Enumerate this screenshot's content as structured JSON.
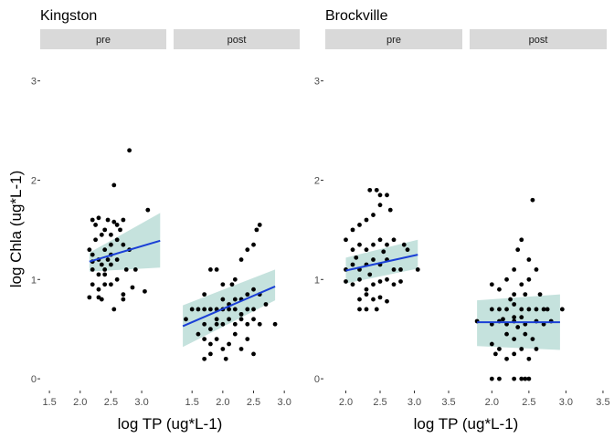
{
  "chart_data": [
    {
      "type": "scatter",
      "title": "Kingston",
      "xlabel": "log TP (ug*L-1)",
      "ylabel": "log Chla (ug*L-1)",
      "ylim": [
        -0.1,
        3.3
      ],
      "y_ticks": [
        "0",
        "1",
        "2",
        "3"
      ],
      "grid": false,
      "trend": "linear fit with confidence band",
      "facets": [
        {
          "strip": "pre",
          "xlim": [
            1.35,
            3.4
          ],
          "x_ticks": [
            "1.5",
            "2.0",
            "2.5",
            "3.0"
          ],
          "fit": {
            "x": [
              2.15,
              3.3
            ],
            "y": [
              1.18,
              1.39
            ],
            "lower": [
              1.08,
              1.12
            ],
            "upper": [
              1.27,
              1.67
            ]
          },
          "points": [
            [
              2.2,
              1.6
            ],
            [
              2.3,
              1.62
            ],
            [
              2.25,
              1.55
            ],
            [
              2.4,
              1.5
            ],
            [
              2.5,
              1.45
            ],
            [
              2.6,
              1.55
            ],
            [
              2.7,
              1.6
            ],
            [
              2.55,
              1.95
            ],
            [
              2.8,
              2.3
            ],
            [
              3.1,
              1.7
            ],
            [
              2.15,
              1.3
            ],
            [
              2.2,
              1.25
            ],
            [
              2.3,
              1.2
            ],
            [
              2.35,
              1.15
            ],
            [
              2.4,
              1.3
            ],
            [
              2.5,
              1.35
            ],
            [
              2.6,
              1.4
            ],
            [
              2.7,
              1.35
            ],
            [
              2.2,
              1.1
            ],
            [
              2.3,
              1.05
            ],
            [
              2.4,
              1.1
            ],
            [
              2.5,
              1.15
            ],
            [
              2.6,
              1.2
            ],
            [
              2.75,
              1.1
            ],
            [
              2.9,
              1.1
            ],
            [
              2.2,
              0.95
            ],
            [
              2.3,
              0.9
            ],
            [
              2.4,
              0.95
            ],
            [
              2.5,
              0.95
            ],
            [
              2.15,
              0.82
            ],
            [
              2.35,
              0.8
            ],
            [
              2.55,
              0.7
            ],
            [
              2.7,
              0.85
            ],
            [
              3.05,
              0.88
            ],
            [
              2.45,
              1.6
            ],
            [
              2.65,
              1.5
            ],
            [
              2.25,
              1.4
            ],
            [
              2.35,
              1.45
            ],
            [
              2.5,
              1.25
            ],
            [
              2.6,
              1.0
            ],
            [
              2.7,
              0.8
            ],
            [
              2.85,
              0.92
            ],
            [
              2.8,
              1.3
            ],
            [
              2.4,
              1.05
            ],
            [
              2.3,
              0.82
            ],
            [
              2.55,
              1.58
            ],
            [
              2.2,
              1.18
            ],
            [
              2.45,
              1.2
            ]
          ]
        },
        {
          "strip": "post",
          "xlim": [
            1.2,
            3.25
          ],
          "x_ticks": [
            "1.5",
            "2.0",
            "2.5",
            "3.0"
          ],
          "fit": {
            "x": [
              1.35,
              2.85
            ],
            "y": [
              0.53,
              0.93
            ],
            "lower": [
              0.32,
              0.79
            ],
            "upper": [
              0.74,
              1.1
            ]
          },
          "points": [
            [
              1.4,
              0.6
            ],
            [
              1.6,
              0.45
            ],
            [
              1.7,
              0.55
            ],
            [
              1.8,
              0.5
            ],
            [
              1.9,
              0.6
            ],
            [
              2.0,
              0.55
            ],
            [
              2.1,
              0.6
            ],
            [
              2.2,
              0.55
            ],
            [
              2.3,
              0.6
            ],
            [
              2.4,
              0.55
            ],
            [
              2.5,
              0.6
            ],
            [
              2.6,
              0.55
            ],
            [
              2.85,
              0.55
            ],
            [
              1.5,
              0.7
            ],
            [
              1.6,
              0.7
            ],
            [
              1.7,
              0.7
            ],
            [
              1.8,
              0.7
            ],
            [
              1.9,
              0.7
            ],
            [
              2.0,
              0.7
            ],
            [
              2.1,
              0.7
            ],
            [
              2.2,
              0.7
            ],
            [
              2.3,
              0.65
            ],
            [
              2.4,
              0.7
            ],
            [
              2.5,
              0.7
            ],
            [
              1.7,
              0.2
            ],
            [
              1.8,
              0.35
            ],
            [
              1.9,
              0.4
            ],
            [
              2.0,
              0.3
            ],
            [
              2.05,
              0.2
            ],
            [
              2.1,
              0.35
            ],
            [
              2.2,
              0.45
            ],
            [
              2.3,
              0.3
            ],
            [
              2.4,
              0.4
            ],
            [
              2.5,
              0.25
            ],
            [
              1.7,
              0.4
            ],
            [
              1.8,
              0.25
            ],
            [
              1.7,
              0.85
            ],
            [
              1.8,
              1.1
            ],
            [
              1.9,
              1.1
            ],
            [
              2.0,
              0.95
            ],
            [
              2.2,
              1.0
            ],
            [
              2.3,
              1.2
            ],
            [
              2.4,
              1.3
            ],
            [
              2.5,
              1.35
            ],
            [
              2.55,
              1.5
            ],
            [
              2.6,
              1.55
            ],
            [
              2.3,
              0.8
            ],
            [
              2.4,
              0.85
            ],
            [
              2.5,
              0.9
            ],
            [
              2.6,
              0.85
            ],
            [
              2.7,
              0.75
            ],
            [
              2.0,
              0.8
            ],
            [
              2.1,
              0.75
            ],
            [
              2.2,
              0.8
            ],
            [
              1.9,
              0.55
            ],
            [
              2.15,
              0.95
            ]
          ]
        }
      ]
    },
    {
      "type": "scatter",
      "title": "Brockville",
      "xlabel": "log TP (ug*L-1)",
      "ylabel": "",
      "ylim": [
        -0.1,
        3.3
      ],
      "y_ticks": [
        "0",
        "1",
        "2",
        "3"
      ],
      "grid": false,
      "trend": "linear fit with confidence band",
      "facets": [
        {
          "strip": "pre",
          "xlim": [
            1.7,
            3.7
          ],
          "x_ticks": [
            "2.0",
            "2.5",
            "3.0",
            "3.5"
          ],
          "fit": {
            "x": [
              2.0,
              3.05
            ],
            "y": [
              1.09,
              1.25
            ],
            "lower": [
              0.96,
              1.11
            ],
            "upper": [
              1.22,
              1.4
            ]
          },
          "points": [
            [
              2.1,
              1.5
            ],
            [
              2.2,
              1.55
            ],
            [
              2.3,
              1.6
            ],
            [
              2.35,
              1.9
            ],
            [
              2.45,
              1.9
            ],
            [
              2.5,
              1.85
            ],
            [
              2.6,
              1.85
            ],
            [
              2.4,
              1.65
            ],
            [
              2.5,
              1.75
            ],
            [
              2.65,
              1.7
            ],
            [
              2.0,
              1.4
            ],
            [
              2.1,
              1.3
            ],
            [
              2.2,
              1.35
            ],
            [
              2.3,
              1.3
            ],
            [
              2.4,
              1.35
            ],
            [
              2.5,
              1.4
            ],
            [
              2.6,
              1.35
            ],
            [
              2.7,
              1.4
            ],
            [
              2.85,
              1.35
            ],
            [
              2.9,
              1.3
            ],
            [
              2.0,
              1.1
            ],
            [
              2.1,
              1.15
            ],
            [
              2.2,
              1.1
            ],
            [
              2.3,
              1.15
            ],
            [
              2.4,
              1.2
            ],
            [
              2.5,
              1.15
            ],
            [
              2.6,
              1.2
            ],
            [
              2.7,
              1.1
            ],
            [
              2.8,
              1.1
            ],
            [
              3.05,
              1.1
            ],
            [
              2.0,
              0.98
            ],
            [
              2.1,
              0.95
            ],
            [
              2.2,
              1.0
            ],
            [
              2.3,
              0.9
            ],
            [
              2.4,
              0.95
            ],
            [
              2.5,
              0.98
            ],
            [
              2.6,
              1.0
            ],
            [
              2.7,
              0.95
            ],
            [
              2.8,
              0.98
            ],
            [
              2.2,
              0.8
            ],
            [
              2.3,
              0.85
            ],
            [
              2.4,
              0.8
            ],
            [
              2.5,
              0.82
            ],
            [
              2.2,
              0.7
            ],
            [
              2.3,
              0.7
            ],
            [
              2.45,
              0.7
            ],
            [
              2.6,
              0.78
            ],
            [
              2.15,
              1.22
            ],
            [
              2.35,
              1.05
            ],
            [
              2.55,
              1.28
            ]
          ]
        },
        {
          "strip": "post",
          "xlim": [
            1.7,
            3.55
          ],
          "x_ticks": [
            "2.0",
            "2.5",
            "3.0",
            "3.5"
          ],
          "fit": {
            "x": [
              1.8,
              2.92
            ],
            "y": [
              0.57,
              0.57
            ],
            "lower": [
              0.33,
              0.29
            ],
            "upper": [
              0.79,
              0.85
            ]
          },
          "points": [
            [
              1.8,
              0.58
            ],
            [
              2.0,
              0.55
            ],
            [
              2.1,
              0.58
            ],
            [
              2.2,
              0.55
            ],
            [
              2.3,
              0.58
            ],
            [
              2.35,
              0.52
            ],
            [
              2.45,
              0.55
            ],
            [
              2.6,
              0.58
            ],
            [
              2.7,
              0.55
            ],
            [
              2.8,
              0.58
            ],
            [
              2.0,
              0.7
            ],
            [
              2.1,
              0.7
            ],
            [
              2.2,
              0.7
            ],
            [
              2.3,
              0.75
            ],
            [
              2.4,
              0.7
            ],
            [
              2.5,
              0.7
            ],
            [
              2.6,
              0.7
            ],
            [
              2.7,
              0.7
            ],
            [
              2.75,
              0.7
            ],
            [
              2.95,
              0.7
            ],
            [
              2.0,
              0.95
            ],
            [
              2.1,
              0.9
            ],
            [
              2.2,
              1.0
            ],
            [
              2.3,
              1.1
            ],
            [
              2.35,
              1.3
            ],
            [
              2.4,
              1.4
            ],
            [
              2.5,
              1.2
            ],
            [
              2.55,
              1.8
            ],
            [
              2.6,
              1.1
            ],
            [
              2.4,
              0.95
            ],
            [
              2.0,
              0.35
            ],
            [
              2.05,
              0.25
            ],
            [
              2.1,
              0.3
            ],
            [
              2.2,
              0.2
            ],
            [
              2.3,
              0.25
            ],
            [
              2.4,
              0.3
            ],
            [
              2.5,
              0.2
            ],
            [
              2.6,
              0.3
            ],
            [
              2.0,
              0.0
            ],
            [
              2.1,
              0.0
            ],
            [
              2.3,
              0.0
            ],
            [
              2.4,
              0.0
            ],
            [
              2.45,
              0.0
            ],
            [
              2.5,
              0.0
            ],
            [
              2.2,
              0.45
            ],
            [
              2.3,
              0.4
            ],
            [
              2.45,
              0.45
            ],
            [
              2.55,
              0.4
            ],
            [
              2.3,
              0.85
            ],
            [
              2.45,
              0.85
            ],
            [
              2.15,
              0.6
            ],
            [
              2.3,
              0.62
            ],
            [
              2.4,
              0.62
            ],
            [
              2.5,
              1.0
            ],
            [
              2.25,
              0.8
            ],
            [
              2.65,
              0.85
            ]
          ]
        }
      ]
    }
  ]
}
